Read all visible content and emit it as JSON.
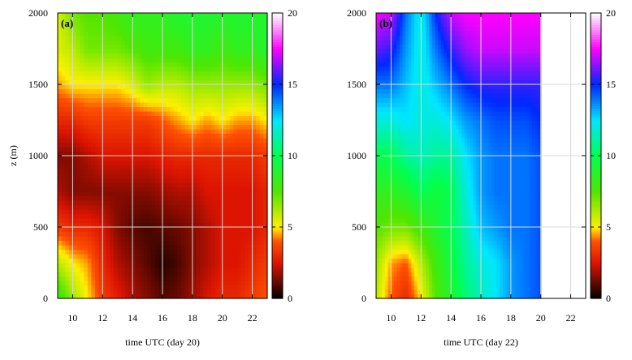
{
  "chart_data": [
    {
      "type": "heatmap",
      "panel_label": "(a)",
      "xlabel": "time UTC (day 20)",
      "ylabel": "z (m)",
      "xlim": [
        9,
        23
      ],
      "ylim": [
        0,
        2000
      ],
      "x_ticks": [
        10,
        12,
        14,
        16,
        18,
        20,
        22
      ],
      "y_ticks": [
        0,
        500,
        1000,
        1500,
        2000
      ],
      "grid": true,
      "colorbar": {
        "range": [
          0,
          20
        ],
        "ticks": [
          0,
          5,
          10,
          15,
          20
        ]
      },
      "x": [
        9,
        10,
        11,
        12,
        13,
        14,
        15,
        16,
        17,
        18,
        19,
        20,
        21,
        22,
        23
      ],
      "z": [
        0,
        250,
        500,
        750,
        1000,
        1250,
        1500,
        1750,
        2000
      ],
      "values": [
        [
          8.5,
          6.5,
          5.0,
          3.5,
          2.8,
          2.0,
          1.5,
          1.0,
          1.2,
          1.8,
          2.5,
          3.0,
          3.0,
          3.5,
          4.0
        ],
        [
          6.0,
          5.0,
          4.5,
          3.0,
          2.0,
          1.5,
          1.0,
          0.4,
          0.8,
          1.5,
          2.0,
          2.5,
          2.5,
          3.0,
          3.5
        ],
        [
          3.5,
          3.0,
          3.0,
          2.5,
          1.5,
          1.0,
          0.8,
          1.0,
          1.2,
          1.5,
          2.0,
          2.5,
          2.5,
          2.5,
          3.0
        ],
        [
          2.0,
          1.5,
          1.5,
          1.5,
          1.5,
          1.5,
          1.5,
          1.8,
          2.0,
          2.0,
          2.5,
          2.5,
          2.5,
          2.5,
          3.0
        ],
        [
          1.5,
          1.5,
          2.0,
          2.5,
          2.5,
          2.5,
          2.5,
          2.8,
          3.0,
          3.0,
          3.0,
          3.0,
          3.0,
          3.0,
          3.5
        ],
        [
          3.0,
          3.0,
          3.5,
          3.5,
          3.5,
          3.5,
          3.5,
          4.0,
          4.5,
          5.0,
          4.5,
          5.0,
          4.5,
          4.5,
          5.0
        ],
        [
          4.5,
          5.0,
          5.0,
          5.0,
          5.0,
          5.5,
          6.5,
          6.0,
          6.0,
          6.5,
          6.5,
          6.5,
          6.5,
          6.5,
          7.0
        ],
        [
          5.5,
          6.0,
          7.0,
          7.0,
          7.0,
          7.5,
          8.0,
          8.0,
          8.0,
          8.5,
          8.5,
          8.0,
          8.5,
          8.5,
          9.0
        ],
        [
          5.5,
          7.0,
          7.5,
          7.5,
          8.0,
          8.5,
          8.5,
          8.5,
          9.0,
          9.0,
          9.0,
          9.0,
          9.0,
          9.0,
          9.0
        ]
      ]
    },
    {
      "type": "heatmap",
      "panel_label": "(b)",
      "xlabel": "time UTC (day 22)",
      "ylabel": "",
      "xlim": [
        9,
        23
      ],
      "ylim": [
        0,
        2000
      ],
      "x_ticks": [
        10,
        12,
        14,
        16,
        18,
        20,
        22
      ],
      "y_ticks": [
        0,
        500,
        1000,
        1500,
        2000
      ],
      "grid": true,
      "data_x_range": [
        9,
        20
      ],
      "colorbar": {
        "range": [
          0,
          20
        ],
        "ticks": [
          0,
          5,
          10,
          15,
          20
        ]
      },
      "x": [
        9,
        10,
        11,
        12,
        13,
        14,
        15,
        16,
        17,
        18,
        19,
        20
      ],
      "z": [
        0,
        250,
        500,
        750,
        1000,
        1250,
        1500,
        1750,
        2000
      ],
      "values": [
        [
          6.0,
          4.0,
          3.0,
          5.0,
          7.5,
          9.0,
          10.5,
          11.5,
          12.5,
          13.5,
          14.0,
          14.5
        ],
        [
          6.5,
          4.5,
          4.0,
          6.0,
          8.0,
          9.5,
          11.0,
          12.0,
          12.5,
          13.5,
          14.0,
          14.5
        ],
        [
          7.5,
          7.0,
          7.0,
          8.0,
          9.0,
          10.0,
          11.5,
          13.0,
          13.5,
          14.0,
          14.0,
          14.5
        ],
        [
          8.5,
          8.5,
          9.0,
          10.0,
          9.5,
          10.0,
          12.0,
          13.5,
          14.0,
          14.0,
          14.0,
          14.5
        ],
        [
          10.0,
          10.0,
          11.0,
          11.5,
          11.0,
          11.0,
          12.5,
          13.5,
          14.0,
          14.0,
          14.0,
          14.5
        ],
        [
          12.0,
          12.0,
          12.5,
          12.0,
          12.0,
          12.5,
          13.5,
          14.0,
          14.5,
          14.5,
          14.5,
          15.0
        ],
        [
          14.0,
          14.0,
          13.0,
          12.0,
          13.0,
          14.0,
          15.0,
          15.5,
          15.5,
          15.5,
          15.5,
          15.5
        ],
        [
          16.0,
          15.5,
          13.5,
          12.0,
          14.0,
          15.5,
          16.5,
          17.0,
          17.0,
          17.0,
          17.0,
          17.0
        ],
        [
          17.5,
          17.0,
          14.0,
          12.0,
          15.0,
          17.0,
          17.5,
          17.5,
          17.5,
          17.5,
          17.5,
          17.5
        ]
      ]
    }
  ]
}
